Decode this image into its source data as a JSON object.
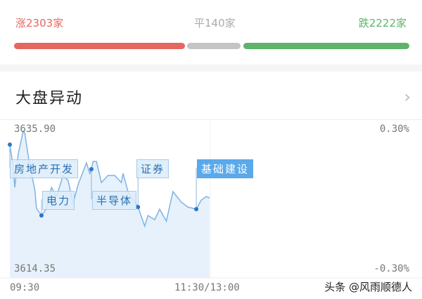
{
  "breadth": {
    "up": "涨2303家",
    "flat": "平140家",
    "down": "跌2222家",
    "colors": {
      "up": "#e5675f",
      "flat": "#c4c4c4",
      "down": "#5fb36a"
    }
  },
  "section": {
    "title": "大盘异动",
    "chevron": "chevron-right-icon"
  },
  "chart_data": {
    "type": "line",
    "y_left_labels": {
      "top": "3635.90",
      "bottom": "3614.35"
    },
    "y_right_labels": {
      "top": "0.30%",
      "bottom": "-0.30%"
    },
    "x_labels": [
      "09:30",
      "11:30/13:00"
    ],
    "ylim": [
      3614.35,
      3635.9
    ],
    "line_color": "#7fb3e3",
    "fill_color": "#e6f1fb",
    "x_minutes": [
      0,
      2,
      3,
      5,
      8,
      9,
      12,
      15,
      16,
      19,
      22,
      25,
      28,
      32,
      35,
      38,
      41,
      46,
      48,
      49,
      50,
      52,
      55,
      59,
      63,
      67,
      68,
      71,
      77,
      81,
      83,
      87,
      90,
      94,
      98,
      103,
      107,
      112,
      115,
      118,
      120
    ],
    "values": [
      3633.64,
      3630.3,
      3627.06,
      3632.13,
      3635.68,
      3635.36,
      3630.3,
      3626.74,
      3623.83,
      3622.75,
      3623.83,
      3627.06,
      3625.66,
      3628.9,
      3628.14,
      3624.59,
      3627.5,
      3630.84,
      3629.22,
      3629.87,
      3631.05,
      3631.05,
      3627.82,
      3628.9,
      3628.9,
      3627.82,
      3629.22,
      3626.42,
      3624.05,
      3621.14,
      3622.75,
      3622.11,
      3623.72,
      3621.89,
      3626.42,
      3624.8,
      3624.05,
      3623.72,
      3625.12,
      3625.66,
      3625.45
    ],
    "annotations": [
      {
        "label": "房地产开发",
        "minute": 0,
        "highlight": false
      },
      {
        "label": "电力",
        "minute": 19,
        "highlight": false
      },
      {
        "label": "半导体",
        "minute": 49,
        "highlight": false
      },
      {
        "label": "证券",
        "minute": 77,
        "highlight": false
      },
      {
        "label": "基础建设",
        "minute": 112,
        "highlight": true
      }
    ]
  },
  "watermark": "头条 @风雨顺德人"
}
